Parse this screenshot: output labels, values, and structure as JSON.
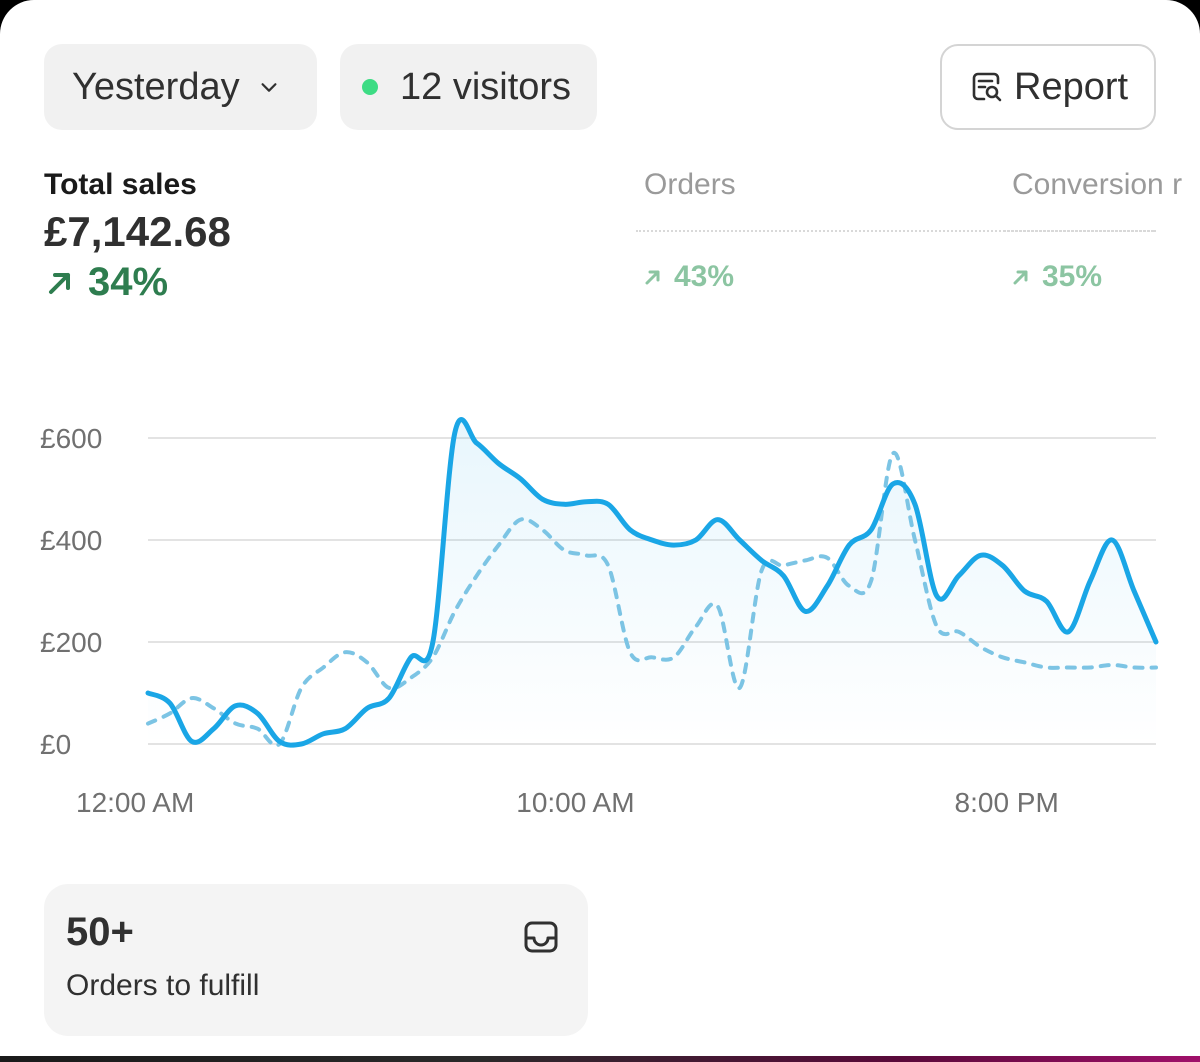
{
  "toolbar": {
    "date_label": "Yesterday",
    "visitors_label": "12 visitors",
    "report_label": "Report"
  },
  "metrics": {
    "total_sales": {
      "label": "Total sales",
      "value": "£7,142.68",
      "change": "34%"
    },
    "orders": {
      "label": "Orders",
      "change": "43%"
    },
    "conversion": {
      "label": "Conversion r",
      "change": "35%"
    }
  },
  "colors": {
    "accent_line": "#1aa6e6",
    "comparison_line": "#7cc4e4",
    "positive": "#2e7d4f",
    "live_dot": "#3ddc84"
  },
  "chart_data": {
    "type": "line",
    "y_ticks": [
      "£600",
      "£400",
      "£200",
      "£0"
    ],
    "y_tick_values": [
      600,
      400,
      200,
      0
    ],
    "ylim": [
      0,
      620
    ],
    "x_ticks": [
      "12:00 AM",
      "10:00 AM",
      "8:00 PM"
    ],
    "grid": true,
    "series": [
      {
        "style": "solid",
        "x": [
          0,
          0.5,
          1,
          1.5,
          2,
          2.5,
          3,
          3.5,
          4,
          4.5,
          5,
          5.5,
          6,
          6.5,
          7,
          7.5,
          8,
          8.5,
          9,
          9.5,
          10,
          10.5,
          11,
          11.5,
          12,
          12.5,
          13,
          13.5,
          14,
          14.5,
          15,
          15.5,
          16,
          16.5,
          17,
          17.5,
          18,
          18.5,
          19,
          19.5,
          20,
          20.5,
          21,
          21.5,
          22,
          22.5,
          23
        ],
        "values": [
          100,
          80,
          5,
          30,
          75,
          60,
          5,
          0,
          20,
          30,
          70,
          90,
          170,
          200,
          610,
          590,
          550,
          520,
          480,
          470,
          475,
          470,
          420,
          400,
          390,
          400,
          440,
          400,
          360,
          330,
          260,
          310,
          390,
          420,
          510,
          470,
          290,
          330,
          370,
          350,
          300,
          280,
          220,
          320,
          400,
          300,
          200
        ]
      },
      {
        "style": "dashed",
        "x": [
          0,
          0.5,
          1,
          1.5,
          2,
          2.5,
          3,
          3.5,
          4,
          4.5,
          5,
          5.5,
          6,
          6.5,
          7,
          7.5,
          8,
          8.5,
          9,
          9.5,
          10,
          10.5,
          11,
          11.5,
          12,
          12.5,
          13,
          13.5,
          14,
          14.5,
          15,
          15.5,
          16,
          16.5,
          17,
          17.5,
          18,
          18.5,
          19,
          19.5,
          20,
          20.5,
          21,
          21.5,
          22,
          22.5,
          23
        ],
        "values": [
          40,
          60,
          90,
          70,
          40,
          30,
          0,
          110,
          150,
          180,
          160,
          110,
          130,
          170,
          260,
          330,
          390,
          440,
          420,
          380,
          370,
          350,
          180,
          170,
          170,
          230,
          270,
          110,
          340,
          350,
          360,
          365,
          310,
          320,
          570,
          400,
          230,
          220,
          190,
          170,
          160,
          150,
          150,
          150,
          155,
          150,
          150
        ]
      }
    ]
  },
  "fulfill_card": {
    "value": "50+",
    "label": "Orders to fulfill"
  }
}
